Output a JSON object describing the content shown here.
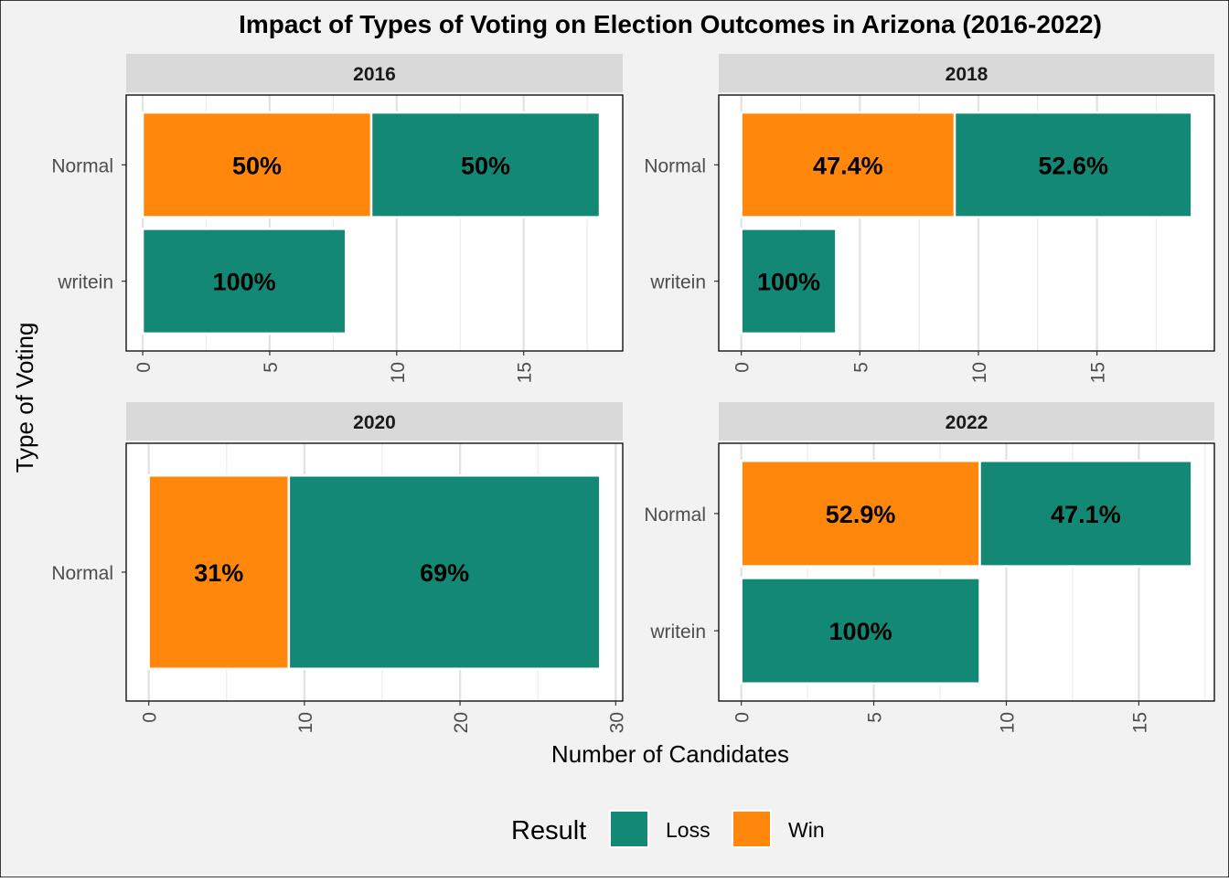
{
  "chart_data": {
    "type": "bar",
    "orientation": "horizontal",
    "stacked": true,
    "title": "Impact of Types of Voting on Election Outcomes in Arizona (2016-2022)",
    "xlabel": "Number of Candidates",
    "ylabel": "Type of Voting",
    "legend": {
      "title": "Result",
      "position": "bottom",
      "entries": [
        {
          "name": "Loss",
          "color": "#138874"
        },
        {
          "name": "Win",
          "color": "#FF870C"
        }
      ]
    },
    "stack_order": [
      "Win",
      "Loss"
    ],
    "grid": true,
    "facets": [
      {
        "title": "2016",
        "categories": [
          "Normal",
          "writein"
        ],
        "xlim": [
          -0.65,
          18.9
        ],
        "xticks": [
          0,
          5,
          10,
          15
        ],
        "series": [
          {
            "name": "Win",
            "values": [
              9,
              0
            ],
            "labels": [
              "50%",
              ""
            ]
          },
          {
            "name": "Loss",
            "values": [
              9,
              8
            ],
            "labels": [
              "50%",
              "100%"
            ]
          }
        ]
      },
      {
        "title": "2018",
        "categories": [
          "Normal",
          "writein"
        ],
        "xlim": [
          -0.95,
          19.95
        ],
        "xticks": [
          0,
          5,
          10,
          15
        ],
        "series": [
          {
            "name": "Win",
            "values": [
              9,
              0
            ],
            "labels": [
              "47.4%",
              ""
            ]
          },
          {
            "name": "Loss",
            "values": [
              10,
              4
            ],
            "labels": [
              "52.6%",
              "100%"
            ]
          }
        ]
      },
      {
        "title": "2020",
        "categories": [
          "Normal"
        ],
        "xlim": [
          -1.45,
          30.45
        ],
        "xticks": [
          0,
          10,
          20,
          30
        ],
        "series": [
          {
            "name": "Win",
            "values": [
              9
            ],
            "labels": [
              "31%"
            ]
          },
          {
            "name": "Loss",
            "values": [
              20
            ],
            "labels": [
              "69%"
            ]
          }
        ]
      },
      {
        "title": "2022",
        "categories": [
          "Normal",
          "writein"
        ],
        "xlim": [
          -0.85,
          17.85
        ],
        "xticks": [
          0,
          5,
          10,
          15
        ],
        "series": [
          {
            "name": "Win",
            "values": [
              9,
              0
            ],
            "labels": [
              "52.9%",
              ""
            ]
          },
          {
            "name": "Loss",
            "values": [
              8,
              9
            ],
            "labels": [
              "47.1%",
              "100%"
            ]
          }
        ]
      }
    ]
  }
}
